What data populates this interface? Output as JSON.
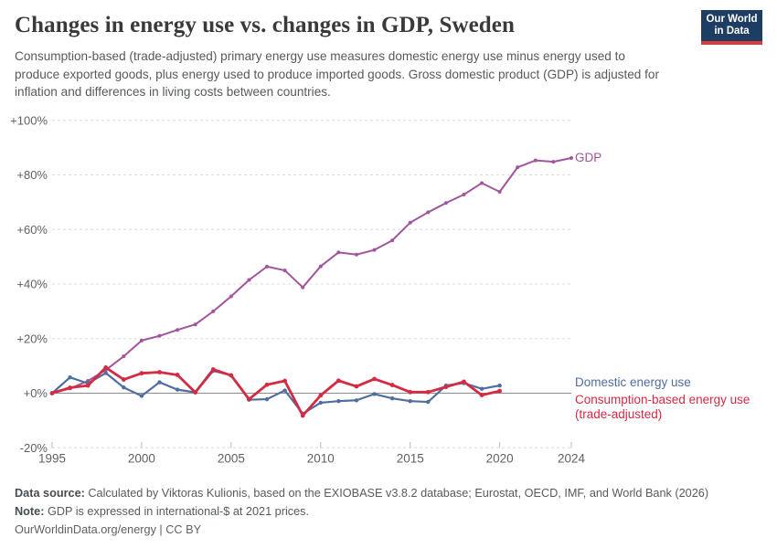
{
  "header": {
    "title": "Changes in energy use vs. changes in GDP, Sweden",
    "subtitle": "Consumption-based (trade-adjusted) primary energy use measures domestic energy use minus energy used to produce exported goods, plus energy used to produce imported goods. Gross domestic product (GDP) is adjusted for inflation and differences in living costs between countries."
  },
  "logo": {
    "line1": "Our World",
    "line2": "in Data",
    "background": "#1d3d63",
    "stripe": "#d93a3a"
  },
  "chart_data": {
    "type": "line",
    "title": "Changes in energy use vs. changes in GDP, Sweden",
    "xlabel": "",
    "ylabel": "",
    "xlim": [
      1995,
      2024
    ],
    "ylim": [
      -20,
      100
    ],
    "grid": "dashed horizontal",
    "legend_position": "right-of-lines",
    "x_ticks": [
      1995,
      2000,
      2005,
      2010,
      2015,
      2020,
      2024
    ],
    "y_ticks": [
      {
        "label": "+100%",
        "value": 100
      },
      {
        "label": "+80%",
        "value": 80
      },
      {
        "label": "+60%",
        "value": 60
      },
      {
        "label": "+40%",
        "value": 40
      },
      {
        "label": "+20%",
        "value": 20
      },
      {
        "label": "+0%",
        "value": 0
      },
      {
        "label": "-20%",
        "value": -20
      }
    ],
    "series": [
      {
        "id": "gdp",
        "name": "GDP",
        "label_lines": [
          "GDP"
        ],
        "color": "#a2559c",
        "years": [
          1995,
          1996,
          1997,
          1998,
          1999,
          2000,
          2001,
          2002,
          2003,
          2004,
          2005,
          2006,
          2007,
          2008,
          2009,
          2010,
          2011,
          2012,
          2013,
          2014,
          2015,
          2016,
          2017,
          2018,
          2019,
          2020,
          2021,
          2022,
          2023,
          2024
        ],
        "values": [
          0,
          1.7,
          4.5,
          8.5,
          13.5,
          19.3,
          21.0,
          23.2,
          25.2,
          30.0,
          35.5,
          41.5,
          46.4,
          45.0,
          38.8,
          46.5,
          51.6,
          50.8,
          52.5,
          56.0,
          62.5,
          66.3,
          69.7,
          72.8,
          77.0,
          73.8,
          82.8,
          85.3,
          84.8,
          86.2
        ]
      },
      {
        "id": "domestic",
        "name": "Domestic energy use",
        "label_lines": [
          "Domestic energy use"
        ],
        "color": "#4f6e9f",
        "years": [
          1995,
          1996,
          1997,
          1998,
          1999,
          2000,
          2001,
          2002,
          2003,
          2004,
          2005,
          2006,
          2007,
          2008,
          2009,
          2010,
          2011,
          2012,
          2013,
          2014,
          2015,
          2016,
          2017,
          2018,
          2019,
          2020
        ],
        "values": [
          0,
          5.8,
          3.6,
          7.4,
          2.1,
          -1.0,
          4.0,
          1.3,
          0.3,
          8.2,
          6.6,
          -2.4,
          -2.2,
          1.0,
          -7.5,
          -3.5,
          -2.9,
          -2.6,
          -0.3,
          -1.9,
          -2.9,
          -3.2,
          2.8,
          3.7,
          1.6,
          2.8
        ]
      },
      {
        "id": "consumption",
        "name": "Consumption-based energy use (trade-adjusted)",
        "label_lines": [
          "Consumption-based energy use",
          "(trade-adjusted)"
        ],
        "color": "#d42b42",
        "years": [
          1995,
          1996,
          1997,
          1998,
          1999,
          2000,
          2001,
          2002,
          2003,
          2004,
          2005,
          2006,
          2007,
          2008,
          2009,
          2010,
          2011,
          2012,
          2013,
          2014,
          2015,
          2016,
          2017,
          2018,
          2019,
          2020
        ],
        "values": [
          0,
          2.0,
          2.8,
          9.4,
          5.0,
          7.3,
          7.7,
          6.7,
          0.3,
          8.7,
          6.5,
          -2.2,
          3.1,
          4.5,
          -8.2,
          -0.8,
          4.6,
          2.5,
          5.2,
          3.0,
          0.4,
          0.4,
          2.3,
          4.2,
          -0.7,
          0.8
        ]
      }
    ]
  },
  "footer": {
    "source_label": "Data source:",
    "source_text": "Calculated by Viktoras Kulionis, based on the EXIOBASE v3.8.2 database; Eurostat, OECD, IMF, and World Bank (2026)",
    "note_label": "Note:",
    "note_text": "GDP is expressed in international-$ at 2021 prices.",
    "link": "OurWorldinData.org/energy | CC BY"
  }
}
